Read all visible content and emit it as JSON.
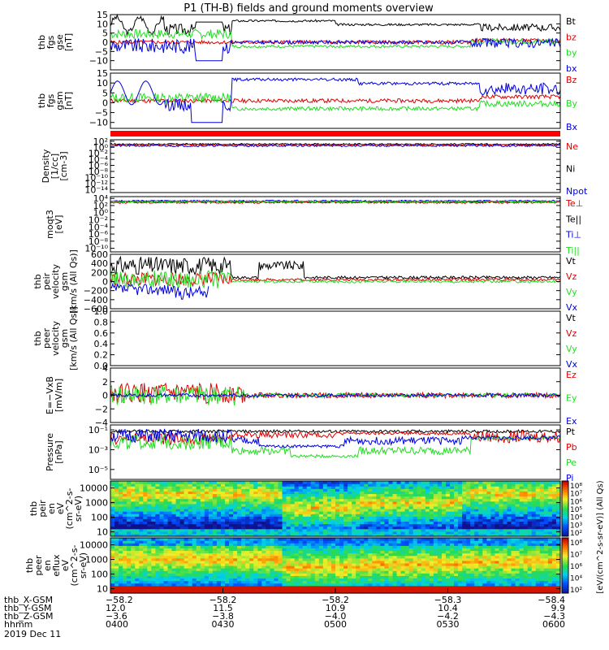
{
  "title": "P1 (TH-B) fields and ground moments overview",
  "colors": {
    "black": "#000000",
    "red": "#e00000",
    "green": "#22dd22",
    "blue": "#0000dd"
  },
  "chart_data": [
    {
      "type": "line",
      "id": "fgs",
      "ylabel": [
        "thb",
        "fgs",
        "gse",
        "[nT]"
      ],
      "ylim": [
        -15,
        15
      ],
      "yticks": [
        "15",
        "10",
        "5",
        "0",
        "−5",
        "−10"
      ],
      "ytick_values": [
        15,
        10,
        5,
        0,
        -5,
        -10
      ],
      "legend": [
        {
          "name": "Bt",
          "color": "#000000"
        },
        {
          "name": "bz",
          "color": "#e00000"
        },
        {
          "name": "by",
          "color": "#22dd22"
        },
        {
          "name": "bx",
          "color": "#0000dd"
        }
      ]
    },
    {
      "type": "line",
      "id": "fgs_gsm",
      "ylabel": [
        "thb",
        "fgs",
        "gsm",
        "[nT]"
      ],
      "ylim": [
        -13,
        15
      ],
      "yticks": [
        "15",
        "10",
        "5",
        "0",
        "−5",
        "−10"
      ],
      "ytick_values": [
        15,
        10,
        5,
        0,
        -5,
        -10
      ],
      "legend": [
        {
          "name": "Bz",
          "color": "#e00000"
        },
        {
          "name": "By",
          "color": "#22dd22"
        },
        {
          "name": "Bx",
          "color": "#0000dd"
        }
      ]
    },
    {
      "type": "line",
      "id": "density",
      "ylabel": [
        "Density",
        "[1/cc]",
        "[cm-3]"
      ],
      "scale": "log",
      "yticks": [
        "10²",
        "10⁰",
        "10⁻²",
        "10⁻⁴",
        "10⁻⁶",
        "10⁻⁸",
        "10⁻¹⁰",
        "10⁻¹²",
        "10⁻¹⁴"
      ],
      "ytick_values": [
        2,
        0,
        -2,
        -4,
        -6,
        -8,
        -10,
        -12,
        -14
      ],
      "legend": [
        {
          "name": "Ne",
          "color": "#e00000"
        },
        {
          "name": "Ni",
          "color": "#000000"
        },
        {
          "name": "Npot",
          "color": "#0000dd"
        }
      ]
    },
    {
      "type": "line",
      "id": "temperature",
      "ylabel": [
        "moqt3",
        "[eV]"
      ],
      "scale": "log",
      "yticks": [
        "10⁴",
        "10²",
        "10⁰",
        "10⁻²",
        "10⁻⁴",
        "10⁻⁶",
        "10⁻⁸",
        "10⁻¹⁰"
      ],
      "ytick_values": [
        4,
        2,
        0,
        -2,
        -4,
        -6,
        -8,
        -10
      ],
      "legend": [
        {
          "name": "Te⊥",
          "color": "#e00000"
        },
        {
          "name": "Te||",
          "color": "#000000"
        },
        {
          "name": "Ti⊥",
          "color": "#0000dd"
        },
        {
          "name": "Ti||",
          "color": "#22dd22"
        }
      ]
    },
    {
      "type": "line",
      "id": "peir_velocity",
      "ylabel": [
        "thb",
        "peir",
        "velocity",
        "gsm",
        "[km/s (All Qs)]"
      ],
      "ylim": [
        -600,
        600
      ],
      "yticks": [
        "600",
        "400",
        "200",
        "0",
        "−200",
        "−400",
        "−600"
      ],
      "ytick_values": [
        600,
        400,
        200,
        0,
        -200,
        -400,
        -600
      ],
      "legend": [
        {
          "name": "Vt",
          "color": "#000000"
        },
        {
          "name": "Vz",
          "color": "#e00000"
        },
        {
          "name": "Vy",
          "color": "#22dd22"
        },
        {
          "name": "Vx",
          "color": "#0000dd"
        }
      ]
    },
    {
      "type": "line",
      "id": "peer_velocity",
      "ylabel": [
        "thb",
        "peer",
        "velocity",
        "gsm",
        "[km/s (All Qs)]"
      ],
      "ylim": [
        0,
        1
      ],
      "yticks": [
        "1.0",
        "0.8",
        "0.6",
        "0.4",
        "0.2",
        "0.0"
      ],
      "ytick_values": [
        1,
        0.8,
        0.6,
        0.4,
        0.2,
        0
      ],
      "legend": [
        {
          "name": "Vt",
          "color": "#000000"
        },
        {
          "name": "Vz",
          "color": "#e00000"
        },
        {
          "name": "Vy",
          "color": "#22dd22"
        },
        {
          "name": "Vx",
          "color": "#0000dd"
        }
      ]
    },
    {
      "type": "line",
      "id": "efield",
      "ylabel": [
        "E=−VxB",
        "[mV/m]"
      ],
      "ylim": [
        -4,
        4
      ],
      "yticks": [
        "4",
        "2",
        "0",
        "−2",
        "−4"
      ],
      "ytick_values": [
        4,
        2,
        0,
        -2,
        -4
      ],
      "legend": [
        {
          "name": "Ez",
          "color": "#e00000"
        },
        {
          "name": "Ey",
          "color": "#22dd22"
        },
        {
          "name": "Ex",
          "color": "#0000dd"
        }
      ]
    },
    {
      "type": "line",
      "id": "pressure",
      "ylabel": [
        "Pressure",
        "[nPa]"
      ],
      "scale": "log",
      "yticks": [
        "10⁻¹",
        "10⁻³",
        "10⁻⁵"
      ],
      "ytick_values": [
        -1,
        -3,
        -5
      ],
      "legend": [
        {
          "name": "Pt",
          "color": "#000000"
        },
        {
          "name": "Pb",
          "color": "#e00000"
        },
        {
          "name": "Pe",
          "color": "#22dd22"
        },
        {
          "name": "Pi",
          "color": "#0000dd"
        }
      ]
    },
    {
      "type": "heatmap",
      "id": "peir_eflux",
      "ylabel": [
        "thb",
        "peir",
        "en",
        "eV",
        "(cm^2-s-",
        "sr-eV)"
      ],
      "scale": "log",
      "ylim": [
        5,
        30000
      ],
      "yticks": [
        "10000",
        "1000",
        "100",
        "10"
      ],
      "ytick_values": [
        10000,
        1000,
        100,
        10
      ]
    },
    {
      "type": "heatmap",
      "id": "peer_eflux",
      "ylabel": [
        "thb",
        "peer",
        "en",
        "eflux",
        "eV",
        "(cm^2-s-",
        "sr-eV)"
      ],
      "scale": "log",
      "ylim": [
        5,
        30000
      ],
      "yticks": [
        "10000",
        "1000",
        "100",
        "10"
      ],
      "ytick_values": [
        10000,
        1000,
        100,
        10
      ]
    }
  ],
  "colorbar": {
    "label": "[eV/(cm^2-s-sr-eV)] (All Qs)",
    "upper_ticks": [
      "10⁸",
      "10⁷",
      "10⁶",
      "10⁵",
      "10⁴",
      "10³",
      "10²"
    ],
    "lower_ticks": [
      "10⁸",
      "10⁷",
      "10⁶",
      "10⁴",
      "10²"
    ]
  },
  "time_axis": {
    "rows": [
      {
        "label": "thb_X-GSM",
        "values": [
          "−58.2",
          "−58.2",
          "−58.2",
          "−58.3",
          "−58.4"
        ]
      },
      {
        "label": "thb_Y-GSM",
        "values": [
          "12.0",
          "11.5",
          "10.9",
          "10.4",
          "9.9"
        ]
      },
      {
        "label": "thb_Z-GSM",
        "values": [
          "−3.6",
          "−3.8",
          "−4.0",
          "−4.2",
          "−4.3"
        ]
      },
      {
        "label": "hhmm",
        "values": [
          "0400",
          "0430",
          "0500",
          "0530",
          "0600"
        ]
      }
    ],
    "date": "2019 Dec 11",
    "tick_values": [
      0,
      30,
      60,
      90,
      120
    ]
  }
}
